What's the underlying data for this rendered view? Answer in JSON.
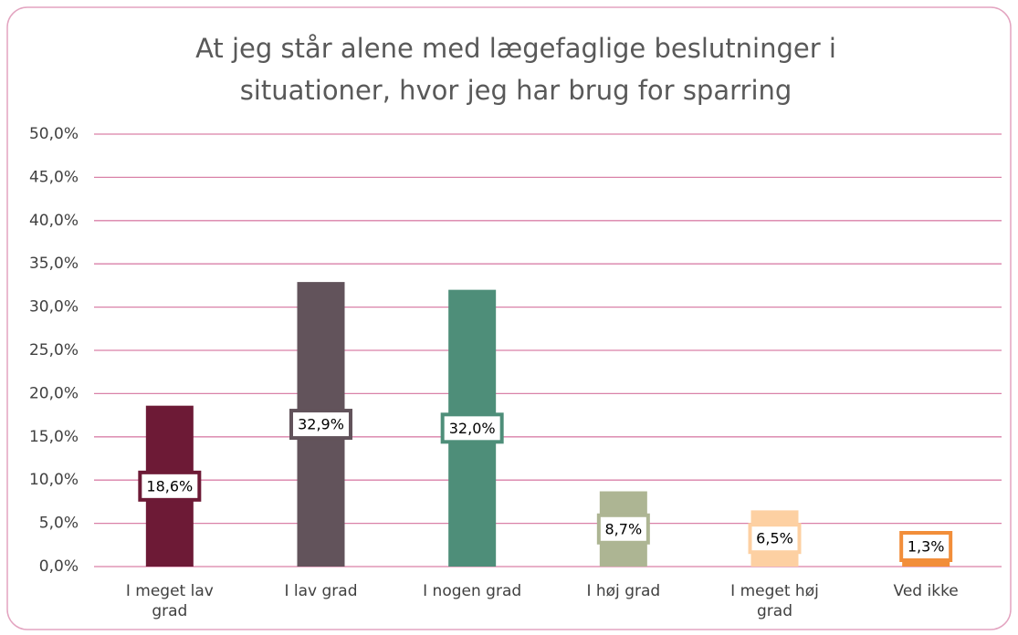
{
  "chart_data": {
    "type": "bar",
    "title": "At jeg står alene med lægefaglige beslutninger i situationer, hvor jeg har brug for sparring",
    "categories": [
      "I meget lav grad",
      "I lav grad",
      "I nogen grad",
      "I høj grad",
      "I meget høj grad",
      "Ved ikke"
    ],
    "values": [
      18.6,
      32.9,
      32.0,
      8.7,
      6.5,
      1.3
    ],
    "value_labels": [
      "18,6%",
      "32,9%",
      "32,0%",
      "8,7%",
      "6,5%",
      "1,3%"
    ],
    "colors": [
      "#6d1a36",
      "#62535b",
      "#4e8e79",
      "#adb593",
      "#fdd0a2",
      "#f28e3a"
    ],
    "ylim": [
      0,
      50
    ],
    "yticks": [
      {
        "value": 0,
        "label": "0,0%"
      },
      {
        "value": 5,
        "label": "5,0%"
      },
      {
        "value": 10,
        "label": "10,0%"
      },
      {
        "value": 15,
        "label": "15,0%"
      },
      {
        "value": 20,
        "label": "20,0%"
      },
      {
        "value": 25,
        "label": "25,0%"
      },
      {
        "value": 30,
        "label": "30,0%"
      },
      {
        "value": 35,
        "label": "35,0%"
      },
      {
        "value": 40,
        "label": "40,0%"
      },
      {
        "value": 45,
        "label": "45,0%"
      },
      {
        "value": 50,
        "label": "50,0%"
      }
    ],
    "grid": true
  }
}
